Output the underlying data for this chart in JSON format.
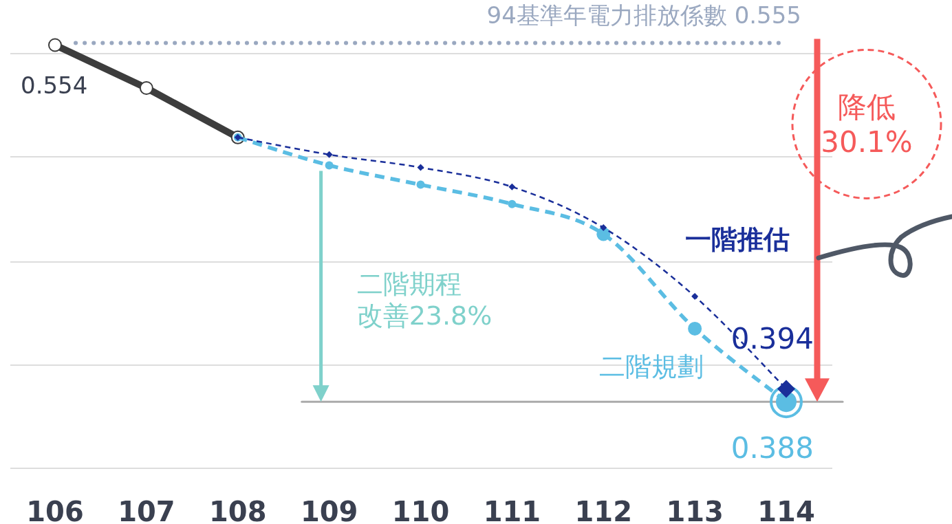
{
  "chart_data": {
    "type": "line",
    "categories": [
      "106",
      "107",
      "108",
      "109",
      "110",
      "111",
      "112",
      "113",
      "114"
    ],
    "yticks": [
      {
        "value": 0.357,
        "label": null
      },
      {
        "value": 0.405,
        "label": null
      },
      {
        "value": 0.453,
        "label": null
      },
      {
        "value": 0.502,
        "label": null
      },
      {
        "value": 0.55,
        "label": null
      }
    ],
    "tick_labels": "x",
    "grid": "y",
    "legend": false,
    "series": [
      {
        "color": "#3d3d3d",
        "marker": "circle",
        "line_style": "solid",
        "values": [
          0.554,
          0.534,
          0.511,
          null,
          null,
          null,
          null,
          null,
          null
        ],
        "value_labels": [
          "0.554",
          null,
          null,
          null,
          null,
          null,
          null,
          null,
          null
        ]
      },
      {
        "name": "一階推估",
        "color": "#1a2f9a",
        "marker": "diamond",
        "line_style": "dashed",
        "values": [
          null,
          null,
          0.511,
          0.503,
          0.497,
          0.488,
          0.469,
          0.437,
          0.394
        ],
        "value_labels": [
          null,
          null,
          null,
          null,
          null,
          null,
          null,
          null,
          "0.394"
        ]
      },
      {
        "name": "二階規劃",
        "color": "#5bbde3",
        "marker": "circle",
        "line_style": "dashed",
        "values": [
          null,
          null,
          0.511,
          0.498,
          0.489,
          0.48,
          0.466,
          0.422,
          0.388
        ],
        "value_labels": [
          null,
          null,
          null,
          null,
          null,
          null,
          null,
          null,
          "0.388"
        ]
      }
    ],
    "ref_lines": [
      {
        "axis": "y",
        "value": 0.555,
        "label": "94基準年電力排放係數 0.555",
        "color": "#9aa8c0",
        "line_style": "dotted"
      },
      {
        "axis": "y",
        "value": 0.388,
        "color": "#aaaaaa",
        "line_style": "solid"
      }
    ],
    "annotations": [
      {
        "text": "二階期程改善23.8%",
        "x": "109",
        "y": 0.388
      },
      "降低30.1%"
    ]
  }
}
